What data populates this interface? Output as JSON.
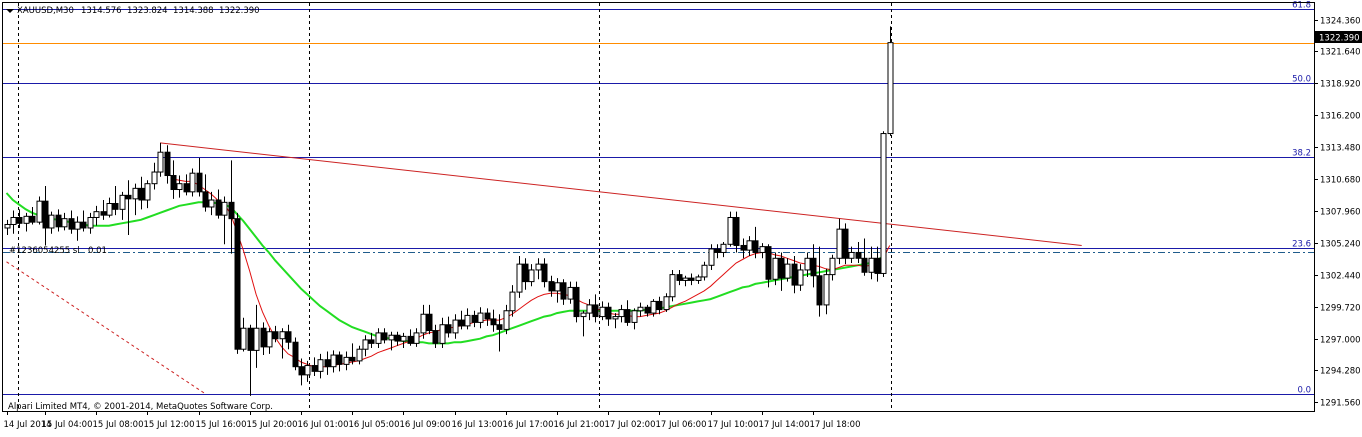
{
  "chart_data": {
    "type": "candlestick",
    "symbol_header": "XAUUSD,M30",
    "ohlc_header": [
      "1314.576",
      "1323.824",
      "1314.388",
      "1322.390"
    ],
    "current_price": 1322.39,
    "current_price_label": "1322.390",
    "copyright": "Alpari Limited MT4, © 2001-2014, MetaQuotes Software Corp.",
    "order_label": "#1236054255 sl",
    "order_value": "0.01",
    "ylim": [
      1290.8,
      1325.8
    ],
    "y_ticks": [
      {
        "value": 1324.36,
        "label": "1324.360"
      },
      {
        "value": 1321.64,
        "label": "1321.640"
      },
      {
        "value": 1318.92,
        "label": "1318.920"
      },
      {
        "value": 1316.2,
        "label": "1316.200"
      },
      {
        "value": 1313.48,
        "label": "1313.480"
      },
      {
        "value": 1310.68,
        "label": "1310.680"
      },
      {
        "value": 1307.96,
        "label": "1307.960"
      },
      {
        "value": 1305.24,
        "label": "1305.240"
      },
      {
        "value": 1302.44,
        "label": "1302.440"
      },
      {
        "value": 1299.72,
        "label": "1299.720"
      },
      {
        "value": 1297.0,
        "label": "1297.000"
      },
      {
        "value": 1294.28,
        "label": "1294.280"
      },
      {
        "value": 1291.56,
        "label": "1291.560"
      }
    ],
    "x_labels": [
      {
        "bar": 0,
        "label": "14 Jul 2014"
      },
      {
        "bar": 6,
        "label": "15 Jul 04:00"
      },
      {
        "bar": 14,
        "label": "15 Jul 08:00"
      },
      {
        "bar": 22,
        "label": "15 Jul 12:00"
      },
      {
        "bar": 30,
        "label": "15 Jul 16:00"
      },
      {
        "bar": 38,
        "label": "15 Jul 20:00"
      },
      {
        "bar": 46,
        "label": "16 Jul 01:00"
      },
      {
        "bar": 54,
        "label": "16 Jul 05:00"
      },
      {
        "bar": 62,
        "label": "16 Jul 09:00"
      },
      {
        "bar": 70,
        "label": "16 Jul 13:00"
      },
      {
        "bar": 78,
        "label": "16 Jul 17:00"
      },
      {
        "bar": 86,
        "label": "16 Jul 21:00"
      },
      {
        "bar": 94,
        "label": "17 Jul 02:00"
      },
      {
        "bar": 102,
        "label": "17 Jul 06:00"
      },
      {
        "bar": 110,
        "label": "17 Jul 10:00"
      },
      {
        "bar": 118,
        "label": "17 Jul 14:00"
      },
      {
        "bar": 126,
        "label": "17 Jul 18:00"
      }
    ],
    "day_separators": [
      1.8,
      47.2,
      92.5,
      138.2
    ],
    "fibonacci": [
      {
        "label": "61.8",
        "value": 1325.3
      },
      {
        "label": "50.0",
        "value": 1318.9
      },
      {
        "label": "38.2",
        "value": 1312.6
      },
      {
        "label": "23.6",
        "value": 1304.8
      },
      {
        "label": "0.0",
        "value": 1292.3
      }
    ],
    "horizontal_lines": [
      {
        "name": "stop-loss",
        "value": 1304.4,
        "color": "#1f5c8c"
      }
    ],
    "trendline": {
      "from": {
        "bar": 24,
        "value": 1313.8
      },
      "to": {
        "bar": 168,
        "value": 1305.0
      },
      "color": "#cc2222"
    },
    "dotted_trendline": {
      "from": {
        "bar": 0,
        "value": 1303.6
      },
      "to": {
        "bar": 31,
        "value": 1292.3
      },
      "color": "#cc2222"
    },
    "colors": {
      "background": "#ffffff",
      "fib": "#1a1aa8",
      "fast_ma": "#e01010",
      "slow_ma": "#22dd22",
      "current_price_line": "#ff8c00",
      "grid": "#000000",
      "candle": "#000000"
    },
    "candles": [
      [
        1306.5,
        1307.2,
        1305.9,
        1306.8
      ],
      [
        1306.8,
        1308.0,
        1306.0,
        1307.4
      ],
      [
        1307.4,
        1308.1,
        1306.5,
        1306.9
      ],
      [
        1306.9,
        1307.8,
        1306.2,
        1307.5
      ],
      [
        1307.5,
        1308.3,
        1306.8,
        1307.0
      ],
      [
        1307.0,
        1309.2,
        1306.8,
        1308.8
      ],
      [
        1308.8,
        1310.1,
        1305.0,
        1306.5
      ],
      [
        1306.5,
        1307.9,
        1306.0,
        1307.6
      ],
      [
        1307.6,
        1308.1,
        1306.2,
        1306.6
      ],
      [
        1306.6,
        1307.8,
        1306.3,
        1307.3
      ],
      [
        1307.3,
        1308.0,
        1306.0,
        1306.4
      ],
      [
        1306.4,
        1307.5,
        1305.4,
        1307.0
      ],
      [
        1307.0,
        1308.0,
        1306.2,
        1306.5
      ],
      [
        1306.5,
        1307.8,
        1306.0,
        1307.4
      ],
      [
        1307.4,
        1308.4,
        1306.7,
        1307.9
      ],
      [
        1307.9,
        1308.9,
        1307.2,
        1307.6
      ],
      [
        1307.6,
        1309.1,
        1307.4,
        1308.6
      ],
      [
        1308.6,
        1310.1,
        1307.6,
        1308.1
      ],
      [
        1308.1,
        1309.6,
        1307.2,
        1309.3
      ],
      [
        1309.3,
        1310.6,
        1305.9,
        1309.0
      ],
      [
        1309.0,
        1310.3,
        1307.6,
        1309.9
      ],
      [
        1309.9,
        1310.9,
        1308.1,
        1308.9
      ],
      [
        1308.9,
        1310.6,
        1308.2,
        1310.3
      ],
      [
        1310.3,
        1312.1,
        1309.8,
        1311.3
      ],
      [
        1311.3,
        1313.8,
        1310.9,
        1313.0
      ],
      [
        1313.0,
        1313.6,
        1310.3,
        1311.0
      ],
      [
        1311.0,
        1312.3,
        1309.0,
        1309.8
      ],
      [
        1309.8,
        1311.0,
        1309.1,
        1310.3
      ],
      [
        1310.3,
        1311.1,
        1309.3,
        1309.6
      ],
      [
        1309.6,
        1311.6,
        1309.2,
        1311.2
      ],
      [
        1311.2,
        1312.5,
        1309.2,
        1309.6
      ],
      [
        1309.6,
        1311.1,
        1307.9,
        1308.3
      ],
      [
        1308.3,
        1309.6,
        1307.6,
        1308.9
      ],
      [
        1308.9,
        1309.8,
        1307.3,
        1307.6
      ],
      [
        1307.6,
        1309.2,
        1305.1,
        1308.7
      ],
      [
        1308.7,
        1312.3,
        1304.3,
        1307.3
      ],
      [
        1307.3,
        1307.8,
        1295.7,
        1296.1
      ],
      [
        1296.1,
        1298.8,
        1295.9,
        1297.9
      ],
      [
        1297.9,
        1298.2,
        1292.1,
        1296.0
      ],
      [
        1296.0,
        1299.9,
        1294.5,
        1297.9
      ],
      [
        1297.9,
        1298.4,
        1295.6,
        1296.3
      ],
      [
        1296.3,
        1297.9,
        1295.7,
        1297.6
      ],
      [
        1297.6,
        1298.1,
        1296.7,
        1297.0
      ],
      [
        1297.0,
        1297.9,
        1295.3,
        1297.6
      ],
      [
        1297.6,
        1298.2,
        1296.1,
        1296.7
      ],
      [
        1296.7,
        1297.1,
        1294.3,
        1294.6
      ],
      [
        1294.6,
        1295.3,
        1293.0,
        1293.9
      ],
      [
        1293.9,
        1295.1,
        1293.3,
        1294.7
      ],
      [
        1294.7,
        1295.4,
        1293.8,
        1294.2
      ],
      [
        1294.2,
        1295.7,
        1293.6,
        1295.2
      ],
      [
        1295.2,
        1295.9,
        1293.9,
        1294.6
      ],
      [
        1294.6,
        1296.0,
        1294.1,
        1295.6
      ],
      [
        1295.6,
        1295.9,
        1294.2,
        1294.8
      ],
      [
        1294.8,
        1295.9,
        1294.3,
        1295.4
      ],
      [
        1295.4,
        1296.6,
        1294.8,
        1295.1
      ],
      [
        1295.1,
        1296.4,
        1294.8,
        1296.1
      ],
      [
        1296.1,
        1297.3,
        1295.5,
        1296.9
      ],
      [
        1296.9,
        1297.5,
        1296.2,
        1296.6
      ],
      [
        1296.6,
        1297.9,
        1296.2,
        1297.5
      ],
      [
        1297.5,
        1297.9,
        1296.6,
        1296.9
      ],
      [
        1296.9,
        1297.6,
        1296.0,
        1297.3
      ],
      [
        1297.3,
        1297.6,
        1296.4,
        1296.8
      ],
      [
        1296.8,
        1297.5,
        1296.2,
        1297.2
      ],
      [
        1297.2,
        1297.8,
        1296.4,
        1296.6
      ],
      [
        1296.6,
        1297.9,
        1296.3,
        1297.5
      ],
      [
        1297.5,
        1299.9,
        1297.0,
        1299.1
      ],
      [
        1299.1,
        1299.9,
        1297.4,
        1297.7
      ],
      [
        1297.7,
        1298.2,
        1296.2,
        1296.6
      ],
      [
        1296.6,
        1298.8,
        1296.2,
        1298.2
      ],
      [
        1298.2,
        1298.9,
        1297.1,
        1297.5
      ],
      [
        1297.5,
        1299.1,
        1297.0,
        1298.6
      ],
      [
        1298.6,
        1299.4,
        1297.8,
        1298.1
      ],
      [
        1298.1,
        1299.6,
        1297.8,
        1299.0
      ],
      [
        1299.0,
        1299.4,
        1298.0,
        1298.4
      ],
      [
        1298.4,
        1299.7,
        1297.9,
        1299.2
      ],
      [
        1299.2,
        1299.6,
        1298.1,
        1298.7
      ],
      [
        1298.7,
        1299.5,
        1297.6,
        1298.2
      ],
      [
        1298.2,
        1299.1,
        1295.9,
        1297.8
      ],
      [
        1297.8,
        1299.9,
        1297.4,
        1299.4
      ],
      [
        1299.4,
        1301.6,
        1298.9,
        1301.0
      ],
      [
        1301.0,
        1304.1,
        1300.5,
        1303.4
      ],
      [
        1303.4,
        1303.9,
        1301.2,
        1301.9
      ],
      [
        1301.9,
        1303.4,
        1301.5,
        1302.9
      ],
      [
        1302.9,
        1303.9,
        1302.1,
        1303.4
      ],
      [
        1303.4,
        1303.9,
        1301.4,
        1301.9
      ],
      [
        1301.9,
        1302.4,
        1300.6,
        1301.1
      ],
      [
        1301.1,
        1302.2,
        1300.1,
        1301.8
      ],
      [
        1301.8,
        1302.1,
        1299.9,
        1300.4
      ],
      [
        1300.4,
        1301.9,
        1300.0,
        1301.4
      ],
      [
        1301.4,
        1301.9,
        1298.4,
        1298.9
      ],
      [
        1298.9,
        1299.4,
        1297.2,
        1299.2
      ],
      [
        1299.2,
        1300.4,
        1298.6,
        1299.9
      ],
      [
        1299.9,
        1300.8,
        1298.4,
        1298.9
      ],
      [
        1298.9,
        1300.2,
        1298.6,
        1299.7
      ],
      [
        1299.7,
        1300.1,
        1298.1,
        1298.7
      ],
      [
        1298.7,
        1299.2,
        1297.9,
        1298.9
      ],
      [
        1298.9,
        1299.9,
        1298.4,
        1299.5
      ],
      [
        1299.5,
        1300.3,
        1298.1,
        1298.4
      ],
      [
        1298.4,
        1299.6,
        1297.8,
        1299.4
      ],
      [
        1299.4,
        1300.1,
        1298.9,
        1299.7
      ],
      [
        1299.7,
        1299.9,
        1298.9,
        1299.2
      ],
      [
        1299.2,
        1300.4,
        1298.9,
        1300.2
      ],
      [
        1300.2,
        1300.6,
        1299.1,
        1299.5
      ],
      [
        1299.5,
        1300.9,
        1299.3,
        1300.6
      ],
      [
        1300.6,
        1302.9,
        1300.2,
        1302.5
      ],
      [
        1302.5,
        1302.9,
        1301.6,
        1302.0
      ],
      [
        1302.0,
        1302.4,
        1301.5,
        1302.2
      ],
      [
        1302.2,
        1302.6,
        1301.6,
        1302.0
      ],
      [
        1302.0,
        1302.5,
        1301.7,
        1302.3
      ],
      [
        1302.3,
        1303.6,
        1302.0,
        1303.3
      ],
      [
        1303.3,
        1305.1,
        1302.9,
        1304.7
      ],
      [
        1304.7,
        1305.1,
        1303.9,
        1304.4
      ],
      [
        1304.4,
        1305.3,
        1304.0,
        1305.1
      ],
      [
        1305.1,
        1307.9,
        1304.9,
        1307.4
      ],
      [
        1307.4,
        1307.9,
        1304.4,
        1305.0
      ],
      [
        1305.0,
        1305.6,
        1303.9,
        1304.6
      ],
      [
        1304.6,
        1305.8,
        1304.1,
        1305.4
      ],
      [
        1305.4,
        1306.6,
        1303.9,
        1304.4
      ],
      [
        1304.4,
        1305.2,
        1303.9,
        1304.9
      ],
      [
        1304.9,
        1305.1,
        1301.4,
        1302.1
      ],
      [
        1302.1,
        1304.4,
        1301.6,
        1303.9
      ],
      [
        1303.9,
        1304.4,
        1301.1,
        1302.2
      ],
      [
        1302.2,
        1303.9,
        1301.9,
        1303.4
      ],
      [
        1303.4,
        1304.1,
        1300.9,
        1301.6
      ],
      [
        1301.6,
        1303.4,
        1301.1,
        1302.9
      ],
      [
        1302.9,
        1304.4,
        1302.3,
        1303.9
      ],
      [
        1303.9,
        1305.1,
        1301.4,
        1302.4
      ],
      [
        1302.4,
        1304.9,
        1298.9,
        1299.9
      ],
      [
        1299.9,
        1303.0,
        1299.1,
        1302.5
      ],
      [
        1302.5,
        1304.2,
        1302.0,
        1303.9
      ],
      [
        1303.9,
        1307.3,
        1303.4,
        1306.4
      ],
      [
        1306.4,
        1306.9,
        1303.4,
        1303.9
      ],
      [
        1303.9,
        1304.9,
        1303.5,
        1304.4
      ],
      [
        1304.4,
        1305.3,
        1303.5,
        1303.9
      ],
      [
        1303.9,
        1305.6,
        1302.4,
        1302.7
      ],
      [
        1302.7,
        1304.9,
        1302.1,
        1303.9
      ],
      [
        1303.9,
        1304.9,
        1301.9,
        1302.6
      ],
      [
        1302.6,
        1314.8,
        1302.3,
        1314.6
      ],
      [
        1314.6,
        1323.8,
        1314.4,
        1322.4
      ]
    ],
    "ma_fast": [
      null,
      null,
      null,
      null,
      null,
      null,
      null,
      null,
      null,
      null,
      null,
      null,
      null,
      null,
      null,
      null,
      null,
      null,
      null,
      null,
      null,
      null,
      null,
      null,
      null,
      null,
      1310.7,
      1310.6,
      1310.5,
      1310.5,
      1310.2,
      1309.8,
      1309.4,
      1308.9,
      1308.6,
      1307.7,
      1306.2,
      1304.6,
      1302.8,
      1300.8,
      1299.3,
      1298.1,
      1297.1,
      1296.3,
      1295.7,
      1295.4,
      1295.0,
      1294.8,
      1294.6,
      1294.6,
      1294.6,
      1294.7,
      1294.8,
      1294.9,
      1295.0,
      1295.1,
      1295.3,
      1295.5,
      1295.8,
      1296.0,
      1296.2,
      1296.4,
      1296.6,
      1296.8,
      1297.0,
      1297.3,
      1297.5,
      1297.6,
      1297.8,
      1297.9,
      1298.0,
      1298.1,
      1298.2,
      1298.4,
      1298.5,
      1298.6,
      1298.6,
      1298.6,
      1298.8,
      1299.1,
      1299.5,
      1299.9,
      1300.3,
      1300.6,
      1300.8,
      1300.9,
      1300.9,
      1300.8,
      1300.7,
      1300.4,
      1300.1,
      1299.9,
      1299.6,
      1299.4,
      1299.2,
      1299.1,
      1299.1,
      1299.0,
      1298.9,
      1298.9,
      1299.0,
      1299.1,
      1299.2,
      1299.4,
      1299.7,
      1300.0,
      1300.2,
      1300.5,
      1300.8,
      1301.1,
      1301.5,
      1302.0,
      1302.5,
      1303.0,
      1303.5,
      1303.8,
      1304.1,
      1304.3,
      1304.4,
      1304.4,
      1304.2,
      1304.1,
      1303.9,
      1303.7,
      1303.5,
      1303.4,
      1303.3,
      1303.2,
      1303.0,
      1302.9,
      1303.1,
      1303.3,
      1303.3,
      1303.3,
      1303.2,
      1303.3,
      1303.5,
      1303.9,
      1305.0
    ],
    "ma_slow": [
      1309.5,
      1308.9,
      1308.5,
      1308.1,
      1307.8,
      1307.6,
      1307.4,
      1307.3,
      1307.2,
      1307.1,
      1307.0,
      1306.9,
      1306.8,
      1306.7,
      1306.7,
      1306.7,
      1306.7,
      1306.8,
      1306.9,
      1307.0,
      1307.1,
      1307.2,
      1307.4,
      1307.6,
      1307.8,
      1308.0,
      1308.2,
      1308.4,
      1308.5,
      1308.6,
      1308.7,
      1308.7,
      1308.7,
      1308.6,
      1308.5,
      1308.3,
      1307.7,
      1307.1,
      1306.4,
      1305.7,
      1305.0,
      1304.4,
      1303.7,
      1303.1,
      1302.5,
      1301.9,
      1301.3,
      1300.8,
      1300.3,
      1299.8,
      1299.4,
      1299.0,
      1298.6,
      1298.3,
      1298.0,
      1297.8,
      1297.6,
      1297.4,
      1297.2,
      1297.1,
      1297.0,
      1296.9,
      1296.8,
      1296.8,
      1296.7,
      1296.7,
      1296.6,
      1296.6,
      1296.6,
      1296.6,
      1296.7,
      1296.7,
      1296.8,
      1296.9,
      1297.0,
      1297.2,
      1297.3,
      1297.5,
      1297.7,
      1297.9,
      1298.1,
      1298.3,
      1298.5,
      1298.7,
      1298.9,
      1299.0,
      1299.2,
      1299.3,
      1299.4,
      1299.4,
      1299.4,
      1299.4,
      1299.4,
      1299.4,
      1299.4,
      1299.4,
      1299.4,
      1299.4,
      1299.4,
      1299.4,
      1299.5,
      1299.5,
      1299.6,
      1299.7,
      1299.8,
      1299.9,
      1300.0,
      1300.1,
      1300.2,
      1300.3,
      1300.4,
      1300.6,
      1300.8,
      1301.0,
      1301.2,
      1301.4,
      1301.5,
      1301.7,
      1301.8,
      1301.9,
      1302.0,
      1302.1,
      1302.2,
      1302.3,
      1302.4,
      1302.5,
      1302.6,
      1302.7,
      1302.8,
      1302.9,
      1303.0,
      1303.1,
      1303.2,
      1303.3,
      1303.4,
      1303.5,
      1303.7,
      1304.1
    ]
  }
}
